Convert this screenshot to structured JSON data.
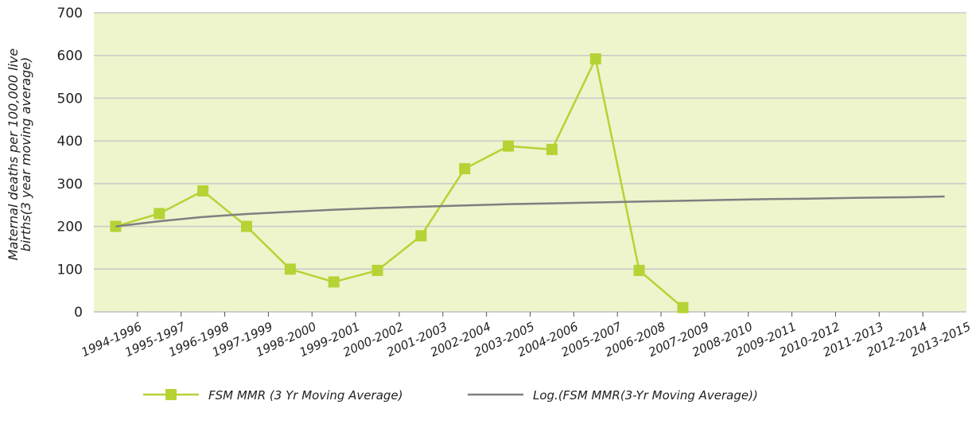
{
  "chart_data": {
    "type": "line",
    "ylabel_lines": [
      "Maternal deaths per 100,000 live",
      "births(3 year moving average)"
    ],
    "categories": [
      "1994-1996",
      "1995-1997",
      "1996-1998",
      "1997-1999",
      "1998-2000",
      "1999-2001",
      "2000-2002",
      "2001-2003",
      "2002-2004",
      "2003-2005",
      "2004-2006",
      "2005-2007",
      "2006-2008",
      "2007-2009",
      "2008-2010",
      "2009-2011",
      "2010-2012",
      "2011-2013",
      "2012-2014",
      "2013-2015"
    ],
    "series": [
      {
        "name": "FSM MMR (3 Yr Moving Average)",
        "color": "#b5d334",
        "marker": "square",
        "values": [
          200,
          230,
          283,
          200,
          100,
          70,
          97,
          178,
          335,
          388,
          380,
          592,
          97,
          10,
          null,
          null,
          null,
          null,
          null,
          null
        ]
      },
      {
        "name": "Log.(FSM MMR(3-Yr Moving Average))",
        "color": "#7f7f7f",
        "marker": "none",
        "values": [
          200,
          212,
          222,
          229,
          234,
          239,
          243,
          246,
          249,
          252,
          254,
          256,
          258,
          260,
          262,
          264,
          265,
          267,
          268,
          270
        ]
      }
    ],
    "ylim": [
      0,
      700
    ],
    "yticks": [
      0,
      100,
      200,
      300,
      400,
      500,
      600,
      700
    ],
    "grid": true,
    "legend": "bottom"
  }
}
